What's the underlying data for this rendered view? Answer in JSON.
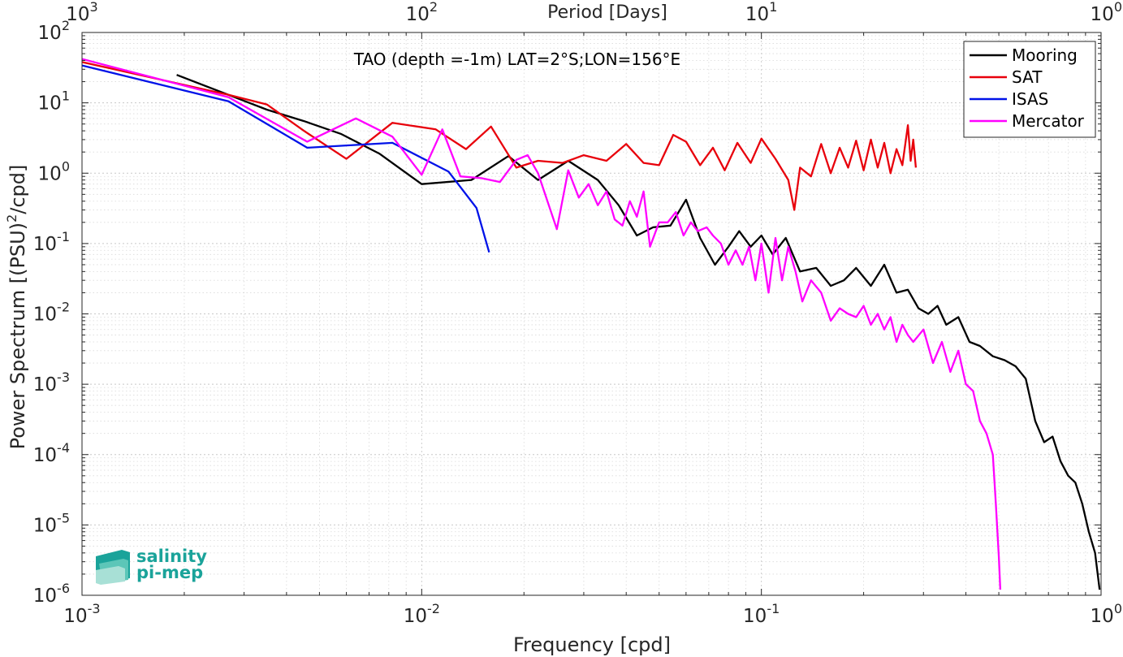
{
  "chart_data": {
    "type": "line",
    "title": "TAO (depth =-1m) LAT=2°S;LON=156°E",
    "xlabel": "Frequency [cpd]",
    "ylabel": "Power Spectrum [(PSU)",
    "ylabel_sup": "2",
    "ylabel_tail": "/cpd]",
    "top_xlabel": "Period [Days]",
    "x_scale": "log",
    "y_scale": "log",
    "xlim": [
      0.001,
      1
    ],
    "ylim": [
      1e-06,
      100
    ],
    "grid": true,
    "legend_position": "top-right",
    "x_ticks": [
      {
        "value": 0.001,
        "base": "10",
        "exp": "-3"
      },
      {
        "value": 0.01,
        "base": "10",
        "exp": "-2"
      },
      {
        "value": 0.1,
        "base": "10",
        "exp": "-1"
      },
      {
        "value": 1,
        "base": "10",
        "exp": "0"
      }
    ],
    "y_ticks": [
      {
        "value": 100,
        "base": "10",
        "exp": "2"
      },
      {
        "value": 10,
        "base": "10",
        "exp": "1"
      },
      {
        "value": 1,
        "base": "10",
        "exp": "0"
      },
      {
        "value": 0.1,
        "base": "10",
        "exp": "-1"
      },
      {
        "value": 0.01,
        "base": "10",
        "exp": "-2"
      },
      {
        "value": 0.001,
        "base": "10",
        "exp": "-3"
      },
      {
        "value": 0.0001,
        "base": "10",
        "exp": "-4"
      },
      {
        "value": 1e-05,
        "base": "10",
        "exp": "-5"
      },
      {
        "value": 1e-06,
        "base": "10",
        "exp": "-6"
      }
    ],
    "top_ticks": [
      {
        "value": 0.001,
        "base": "10",
        "exp": "3"
      },
      {
        "value": 0.01,
        "base": "10",
        "exp": "2"
      },
      {
        "value": 0.1,
        "base": "10",
        "exp": "1"
      },
      {
        "value": 1,
        "base": "10",
        "exp": "0"
      }
    ],
    "series": [
      {
        "name": "Mooring",
        "color": "#000000",
        "points": [
          [
            0.0019,
            25
          ],
          [
            0.0027,
            13
          ],
          [
            0.0035,
            8
          ],
          [
            0.0045,
            5.5
          ],
          [
            0.0058,
            3.6
          ],
          [
            0.0075,
            1.9
          ],
          [
            0.01,
            0.7
          ],
          [
            0.014,
            0.8
          ],
          [
            0.018,
            1.75
          ],
          [
            0.022,
            0.8
          ],
          [
            0.027,
            1.5
          ],
          [
            0.033,
            0.8
          ],
          [
            0.038,
            0.35
          ],
          [
            0.043,
            0.13
          ],
          [
            0.048,
            0.17
          ],
          [
            0.054,
            0.18
          ],
          [
            0.06,
            0.42
          ],
          [
            0.066,
            0.12
          ],
          [
            0.073,
            0.05
          ],
          [
            0.08,
            0.09
          ],
          [
            0.086,
            0.15
          ],
          [
            0.093,
            0.09
          ],
          [
            0.1,
            0.13
          ],
          [
            0.108,
            0.07
          ],
          [
            0.118,
            0.12
          ],
          [
            0.13,
            0.04
          ],
          [
            0.145,
            0.045
          ],
          [
            0.16,
            0.025
          ],
          [
            0.175,
            0.03
          ],
          [
            0.19,
            0.045
          ],
          [
            0.21,
            0.025
          ],
          [
            0.23,
            0.05
          ],
          [
            0.25,
            0.02
          ],
          [
            0.27,
            0.022
          ],
          [
            0.29,
            0.012
          ],
          [
            0.31,
            0.01
          ],
          [
            0.33,
            0.013
          ],
          [
            0.35,
            0.007
          ],
          [
            0.38,
            0.009
          ],
          [
            0.41,
            0.004
          ],
          [
            0.44,
            0.0035
          ],
          [
            0.48,
            0.0025
          ],
          [
            0.52,
            0.0022
          ],
          [
            0.56,
            0.0018
          ],
          [
            0.6,
            0.0012
          ],
          [
            0.64,
            0.0003
          ],
          [
            0.68,
            0.00015
          ],
          [
            0.72,
            0.00018
          ],
          [
            0.76,
            8e-05
          ],
          [
            0.8,
            5e-05
          ],
          [
            0.84,
            4e-05
          ],
          [
            0.88,
            2e-05
          ],
          [
            0.92,
            8e-06
          ],
          [
            0.96,
            4e-06
          ],
          [
            0.99,
            1.2e-06
          ]
        ]
      },
      {
        "name": "SAT",
        "color": "#e8000b",
        "points": [
          [
            0.001,
            38
          ],
          [
            0.0027,
            13
          ],
          [
            0.0035,
            9.5
          ],
          [
            0.0045,
            4
          ],
          [
            0.006,
            1.6
          ],
          [
            0.0082,
            5.2
          ],
          [
            0.011,
            4.2
          ],
          [
            0.0135,
            2.2
          ],
          [
            0.016,
            4.6
          ],
          [
            0.019,
            1.2
          ],
          [
            0.022,
            1.5
          ],
          [
            0.026,
            1.4
          ],
          [
            0.03,
            1.8
          ],
          [
            0.035,
            1.5
          ],
          [
            0.04,
            2.6
          ],
          [
            0.045,
            1.4
          ],
          [
            0.05,
            1.3
          ],
          [
            0.055,
            3.5
          ],
          [
            0.06,
            2.8
          ],
          [
            0.066,
            1.3
          ],
          [
            0.072,
            2.3
          ],
          [
            0.078,
            1.1
          ],
          [
            0.085,
            2.7
          ],
          [
            0.093,
            1.4
          ],
          [
            0.1,
            3.1
          ],
          [
            0.11,
            1.6
          ],
          [
            0.12,
            0.8
          ],
          [
            0.125,
            0.3
          ],
          [
            0.13,
            1.2
          ],
          [
            0.14,
            0.9
          ],
          [
            0.15,
            2.6
          ],
          [
            0.16,
            1.0
          ],
          [
            0.17,
            2.3
          ],
          [
            0.18,
            1.2
          ],
          [
            0.19,
            2.9
          ],
          [
            0.2,
            1.1
          ],
          [
            0.21,
            3.0
          ],
          [
            0.22,
            1.2
          ],
          [
            0.23,
            2.7
          ],
          [
            0.24,
            1.0
          ],
          [
            0.25,
            2.2
          ],
          [
            0.26,
            1.3
          ],
          [
            0.27,
            4.8
          ],
          [
            0.275,
            1.5
          ],
          [
            0.28,
            3.0
          ],
          [
            0.285,
            1.2
          ]
        ]
      },
      {
        "name": "ISAS",
        "color": "#0012e8",
        "points": [
          [
            0.001,
            34
          ],
          [
            0.0027,
            10.5
          ],
          [
            0.0046,
            2.3
          ],
          [
            0.0082,
            2.7
          ],
          [
            0.012,
            1.05
          ],
          [
            0.0145,
            0.32
          ],
          [
            0.0158,
            0.075
          ]
        ]
      },
      {
        "name": "Mercator",
        "color": "#ff00ff",
        "points": [
          [
            0.001,
            42
          ],
          [
            0.0027,
            12
          ],
          [
            0.0046,
            2.8
          ],
          [
            0.0064,
            6
          ],
          [
            0.0082,
            3.3
          ],
          [
            0.01,
            0.95
          ],
          [
            0.0115,
            4.2
          ],
          [
            0.013,
            0.9
          ],
          [
            0.015,
            0.85
          ],
          [
            0.017,
            0.75
          ],
          [
            0.019,
            1.55
          ],
          [
            0.0205,
            1.8
          ],
          [
            0.022,
            1.0
          ],
          [
            0.025,
            0.16
          ],
          [
            0.027,
            1.1
          ],
          [
            0.029,
            0.45
          ],
          [
            0.031,
            0.7
          ],
          [
            0.033,
            0.35
          ],
          [
            0.035,
            0.55
          ],
          [
            0.037,
            0.22
          ],
          [
            0.039,
            0.18
          ],
          [
            0.041,
            0.4
          ],
          [
            0.043,
            0.24
          ],
          [
            0.045,
            0.55
          ],
          [
            0.047,
            0.09
          ],
          [
            0.05,
            0.2
          ],
          [
            0.053,
            0.2
          ],
          [
            0.056,
            0.28
          ],
          [
            0.059,
            0.13
          ],
          [
            0.062,
            0.2
          ],
          [
            0.065,
            0.15
          ],
          [
            0.069,
            0.17
          ],
          [
            0.072,
            0.13
          ],
          [
            0.076,
            0.1
          ],
          [
            0.08,
            0.05
          ],
          [
            0.084,
            0.08
          ],
          [
            0.088,
            0.05
          ],
          [
            0.092,
            0.09
          ],
          [
            0.096,
            0.03
          ],
          [
            0.1,
            0.1
          ],
          [
            0.105,
            0.02
          ],
          [
            0.11,
            0.12
          ],
          [
            0.115,
            0.03
          ],
          [
            0.12,
            0.09
          ],
          [
            0.126,
            0.04
          ],
          [
            0.132,
            0.015
          ],
          [
            0.14,
            0.03
          ],
          [
            0.15,
            0.02
          ],
          [
            0.16,
            0.008
          ],
          [
            0.17,
            0.012
          ],
          [
            0.18,
            0.01
          ],
          [
            0.19,
            0.009
          ],
          [
            0.2,
            0.013
          ],
          [
            0.21,
            0.007
          ],
          [
            0.22,
            0.01
          ],
          [
            0.23,
            0.006
          ],
          [
            0.24,
            0.009
          ],
          [
            0.25,
            0.004
          ],
          [
            0.26,
            0.007
          ],
          [
            0.27,
            0.005
          ],
          [
            0.28,
            0.004
          ],
          [
            0.3,
            0.006
          ],
          [
            0.32,
            0.002
          ],
          [
            0.34,
            0.004
          ],
          [
            0.36,
            0.0015
          ],
          [
            0.38,
            0.003
          ],
          [
            0.4,
            0.001
          ],
          [
            0.42,
            0.0008
          ],
          [
            0.44,
            0.0003
          ],
          [
            0.46,
            0.0002
          ],
          [
            0.48,
            0.0001
          ],
          [
            0.49,
            2e-05
          ],
          [
            0.5,
            3.5e-06
          ],
          [
            0.505,
            1.2e-06
          ]
        ]
      }
    ]
  },
  "logo": {
    "line1": "salinity",
    "line2": "pi-mep"
  }
}
